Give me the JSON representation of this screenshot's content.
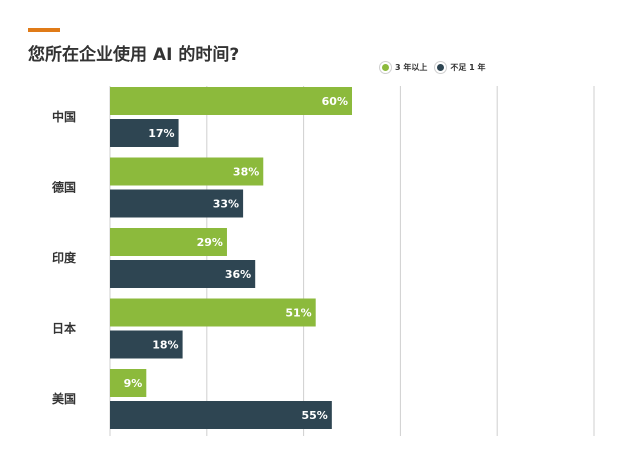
{
  "title": "您所在企业使用 AI 的时间?",
  "legend": [
    {
      "label": "3 年以上",
      "color": "#8cba3c"
    },
    {
      "label": "不足 1 年",
      "color": "#2e4552"
    }
  ],
  "chart_data": {
    "type": "bar",
    "orientation": "horizontal",
    "title": "您所在企业使用 AI 的时间?",
    "categories": [
      "中国",
      "德国",
      "印度",
      "日本",
      "美国"
    ],
    "series": [
      {
        "name": "3 年以上",
        "values": [
          60,
          38,
          29,
          51,
          9
        ],
        "labels": [
          "60%",
          "38%",
          "29%",
          "51%",
          "9%"
        ],
        "color": "#8cba3c"
      },
      {
        "name": "不足 1 年",
        "values": [
          17,
          33,
          36,
          18,
          55
        ],
        "labels": [
          "17%",
          "33%",
          "36%",
          "18%",
          "55%"
        ],
        "color": "#2e4552"
      }
    ],
    "xlim": [
      0,
      120
    ],
    "grid": true,
    "legend_position": "top-right"
  }
}
